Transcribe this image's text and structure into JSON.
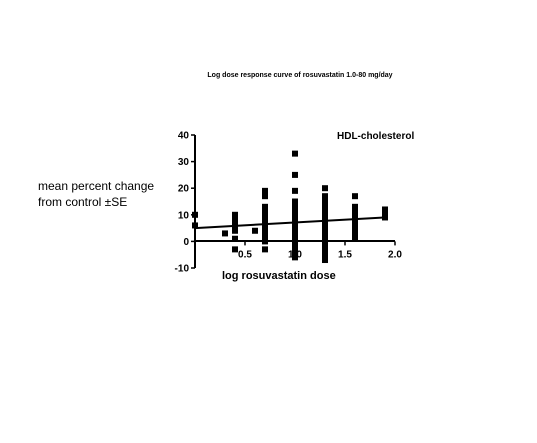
{
  "chart_data": {
    "type": "scatter",
    "title": "Log dose response curve of rosuvastatin 1.0-80 mg/day",
    "annotation": "HDL-cholesterol",
    "xlabel": "log rosuvastatin dose",
    "ylabel_lines": [
      "mean percent change",
      "from control ±SE"
    ],
    "xlim": [
      0.0,
      2.0
    ],
    "ylim": [
      -10,
      40
    ],
    "x_ticks": [
      0.5,
      1.0,
      1.5,
      2.0
    ],
    "x_tick_labels": [
      "0.5",
      "1.0",
      "1.5",
      "2.0"
    ],
    "y_ticks": [
      -10,
      0,
      10,
      20,
      30,
      40
    ],
    "y_tick_labels": [
      "-10",
      "0",
      "10",
      "20",
      "30",
      "40"
    ],
    "grid": false,
    "legend": "none",
    "series": [
      {
        "points": [
          [
            0.0,
            6
          ],
          [
            0.0,
            10
          ],
          [
            0.3,
            3
          ],
          [
            0.4,
            -3
          ],
          [
            0.4,
            1
          ],
          [
            0.4,
            4
          ],
          [
            0.4,
            5
          ],
          [
            0.4,
            6
          ],
          [
            0.4,
            7
          ],
          [
            0.4,
            8
          ],
          [
            0.4,
            9
          ],
          [
            0.4,
            10
          ],
          [
            0.6,
            4
          ],
          [
            0.7,
            -3
          ],
          [
            0.7,
            0
          ],
          [
            0.7,
            1
          ],
          [
            0.7,
            2
          ],
          [
            0.7,
            3
          ],
          [
            0.7,
            4
          ],
          [
            0.7,
            5
          ],
          [
            0.7,
            6
          ],
          [
            0.7,
            7
          ],
          [
            0.7,
            8
          ],
          [
            0.7,
            9
          ],
          [
            0.7,
            10
          ],
          [
            0.7,
            11
          ],
          [
            0.7,
            12
          ],
          [
            0.7,
            13
          ],
          [
            0.7,
            17
          ],
          [
            0.7,
            18
          ],
          [
            0.7,
            19
          ],
          [
            1.0,
            -6
          ],
          [
            1.0,
            -5
          ],
          [
            1.0,
            -4
          ],
          [
            1.0,
            -3
          ],
          [
            1.0,
            -2
          ],
          [
            1.0,
            -1
          ],
          [
            1.0,
            0
          ],
          [
            1.0,
            1
          ],
          [
            1.0,
            2
          ],
          [
            1.0,
            3
          ],
          [
            1.0,
            4
          ],
          [
            1.0,
            5
          ],
          [
            1.0,
            6
          ],
          [
            1.0,
            7
          ],
          [
            1.0,
            8
          ],
          [
            1.0,
            9
          ],
          [
            1.0,
            10
          ],
          [
            1.0,
            11
          ],
          [
            1.0,
            12
          ],
          [
            1.0,
            13
          ],
          [
            1.0,
            14
          ],
          [
            1.0,
            15
          ],
          [
            1.0,
            19
          ],
          [
            1.0,
            25
          ],
          [
            1.0,
            33
          ],
          [
            1.3,
            -7
          ],
          [
            1.3,
            -5
          ],
          [
            1.3,
            -3
          ],
          [
            1.3,
            -2
          ],
          [
            1.3,
            -1
          ],
          [
            1.3,
            0
          ],
          [
            1.3,
            1
          ],
          [
            1.3,
            2
          ],
          [
            1.3,
            3
          ],
          [
            1.3,
            4
          ],
          [
            1.3,
            5
          ],
          [
            1.3,
            6
          ],
          [
            1.3,
            7
          ],
          [
            1.3,
            8
          ],
          [
            1.3,
            9
          ],
          [
            1.3,
            10
          ],
          [
            1.3,
            11
          ],
          [
            1.3,
            12
          ],
          [
            1.3,
            13
          ],
          [
            1.3,
            14
          ],
          [
            1.3,
            15
          ],
          [
            1.3,
            17
          ],
          [
            1.3,
            20
          ],
          [
            1.6,
            1
          ],
          [
            1.6,
            3
          ],
          [
            1.6,
            5
          ],
          [
            1.6,
            7
          ],
          [
            1.6,
            8
          ],
          [
            1.6,
            9
          ],
          [
            1.6,
            10
          ],
          [
            1.6,
            11
          ],
          [
            1.6,
            12
          ],
          [
            1.6,
            13
          ],
          [
            1.6,
            17
          ],
          [
            1.9,
            9
          ],
          [
            1.9,
            10
          ],
          [
            1.9,
            12
          ]
        ]
      }
    ],
    "regression_line": {
      "x": [
        0.0,
        1.9
      ],
      "y": [
        5.0,
        9.0
      ]
    }
  }
}
